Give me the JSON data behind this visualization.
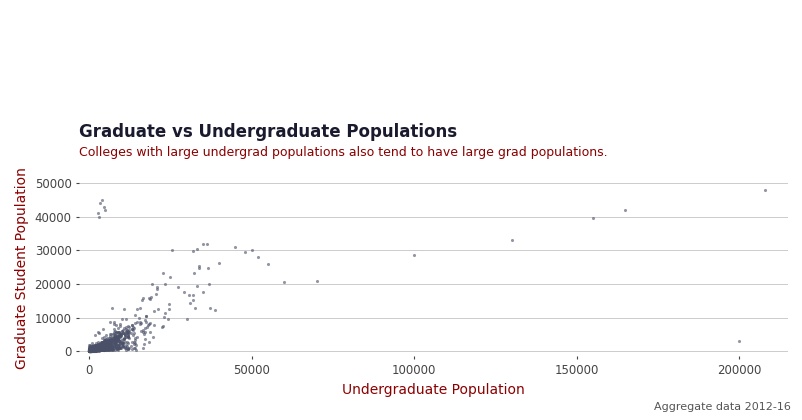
{
  "title": "Graduate vs Undergraduate Populations",
  "subtitle": "Colleges with large undergrad populations also tend to have large grad populations.",
  "xlabel": "Undergraduate Population",
  "ylabel": "Graduate Student Population",
  "footnote": "Aggregate data 2012-16",
  "title_color": "#1a1a2e",
  "subtitle_color": "#8B0000",
  "footnote_color": "#555555",
  "axis_label_color": "#8B0000",
  "dot_color": "#4a5068",
  "dot_alpha": 0.6,
  "dot_size": 5,
  "xlim": [
    -3000,
    215000
  ],
  "ylim": [
    -1500,
    51000
  ],
  "background_color": "#ffffff",
  "grid_color": "#cccccc",
  "seed": 42,
  "n_main": 1200
}
